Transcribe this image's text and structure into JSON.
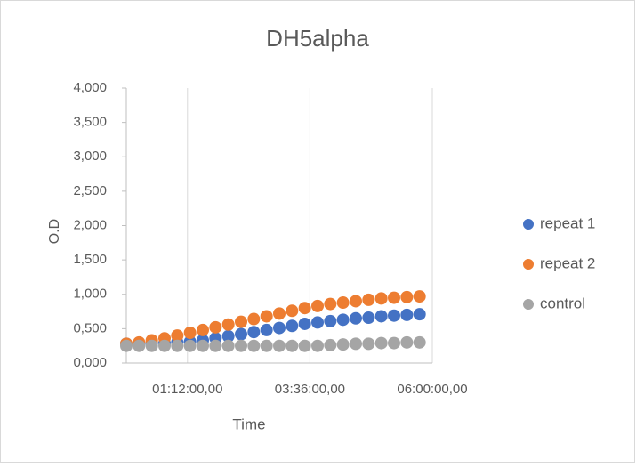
{
  "chart_data": {
    "type": "scatter",
    "title": "DH5alpha",
    "xlabel": "Time",
    "ylabel": "O.D",
    "xlim": [
      0,
      6
    ],
    "xticks": [
      {
        "value": 1.2,
        "label": "01:12:00,00"
      },
      {
        "value": 3.6,
        "label": "03:36:00,00"
      },
      {
        "value": 6,
        "label": "06:00:00,00"
      }
    ],
    "ylim": [
      0,
      4
    ],
    "yticks": [
      {
        "value": 0,
        "label": "0,000"
      },
      {
        "value": 0.5,
        "label": "0,500"
      },
      {
        "value": 1,
        "label": "1,000"
      },
      {
        "value": 1.5,
        "label": "1,500"
      },
      {
        "value": 2,
        "label": "2,000"
      },
      {
        "value": 2.5,
        "label": "2,500"
      },
      {
        "value": 3,
        "label": "3,000"
      },
      {
        "value": 3.5,
        "label": "3,500"
      },
      {
        "value": 4,
        "label": "4,000"
      }
    ],
    "grid": "x",
    "legend": "right",
    "x": [
      0,
      0.25,
      0.5,
      0.75,
      1,
      1.25,
      1.5,
      1.75,
      2,
      2.25,
      2.5,
      2.75,
      3,
      3.25,
      3.5,
      3.75,
      4,
      4.25,
      4.5,
      4.75,
      5,
      5.25,
      5.5,
      5.75
    ],
    "series": [
      {
        "name": "repeat 1",
        "color": "#4472c4",
        "values": [
          0.28,
          0.28,
          0.29,
          0.29,
          0.3,
          0.31,
          0.33,
          0.36,
          0.39,
          0.42,
          0.45,
          0.48,
          0.51,
          0.54,
          0.57,
          0.59,
          0.61,
          0.63,
          0.65,
          0.66,
          0.68,
          0.69,
          0.7,
          0.71
        ]
      },
      {
        "name": "repeat 2",
        "color": "#ed7d31",
        "values": [
          0.28,
          0.3,
          0.33,
          0.36,
          0.4,
          0.44,
          0.48,
          0.52,
          0.56,
          0.6,
          0.64,
          0.68,
          0.72,
          0.76,
          0.8,
          0.83,
          0.86,
          0.88,
          0.9,
          0.92,
          0.94,
          0.95,
          0.96,
          0.97
        ]
      },
      {
        "name": "control",
        "color": "#a5a5a5",
        "values": [
          0.25,
          0.25,
          0.25,
          0.25,
          0.25,
          0.25,
          0.25,
          0.25,
          0.25,
          0.25,
          0.25,
          0.25,
          0.25,
          0.25,
          0.25,
          0.25,
          0.26,
          0.27,
          0.28,
          0.28,
          0.29,
          0.29,
          0.3,
          0.3
        ]
      }
    ]
  }
}
